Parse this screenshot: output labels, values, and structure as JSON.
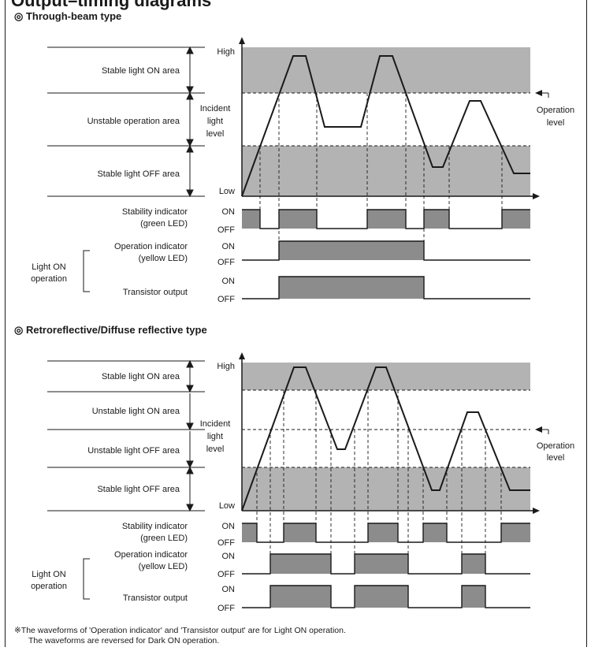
{
  "page_title": "Output–timing diagrams",
  "sections": [
    {
      "title": "◎ Through-beam type",
      "areas": [
        "Stable light ON area",
        "Unstable operation area",
        "Stable light OFF area"
      ],
      "axis": {
        "high": "High",
        "low": "Low",
        "label_lines": [
          "Incident",
          "light",
          "level"
        ]
      },
      "operation_level_lines": [
        "Operation",
        "level"
      ],
      "rows": [
        {
          "label_lines": [
            "Stability indicator",
            "(green LED)"
          ],
          "on": "ON",
          "off": "OFF"
        },
        {
          "label_lines": [
            "Operation indicator",
            "(yellow LED)"
          ],
          "on": "ON",
          "off": "OFF"
        },
        {
          "label_lines": [
            "Transistor output"
          ],
          "on": "ON",
          "off": "OFF"
        }
      ],
      "group_label_lines": [
        "Light ON",
        "operation"
      ]
    },
    {
      "title": "◎ Retroreflective/Diffuse reflective type",
      "areas": [
        "Stable light ON area",
        "Unstable light ON area",
        "Unstable light OFF area",
        "Stable light OFF area"
      ],
      "axis": {
        "high": "High",
        "low": "Low",
        "label_lines": [
          "Incident",
          "light",
          "level"
        ]
      },
      "operation_level_lines": [
        "Operation",
        "level"
      ],
      "rows": [
        {
          "label_lines": [
            "Stability indicator",
            "(green LED)"
          ],
          "on": "ON",
          "off": "OFF"
        },
        {
          "label_lines": [
            "Operation indicator",
            "(yellow LED)"
          ],
          "on": "ON",
          "off": "OFF"
        },
        {
          "label_lines": [
            "Transistor output"
          ],
          "on": "ON",
          "off": "OFF"
        }
      ],
      "group_label_lines": [
        "Light ON",
        "operation"
      ]
    }
  ],
  "footnote_lines": [
    "※The waveforms of 'Operation indicator' and 'Transistor output' are for Light ON operation.",
    "The waveforms are reversed for Dark ON operation."
  ],
  "colors": {
    "band": "#b3b3b3",
    "pulse": "#8c8c8c",
    "line": "#1a1a1a"
  }
}
